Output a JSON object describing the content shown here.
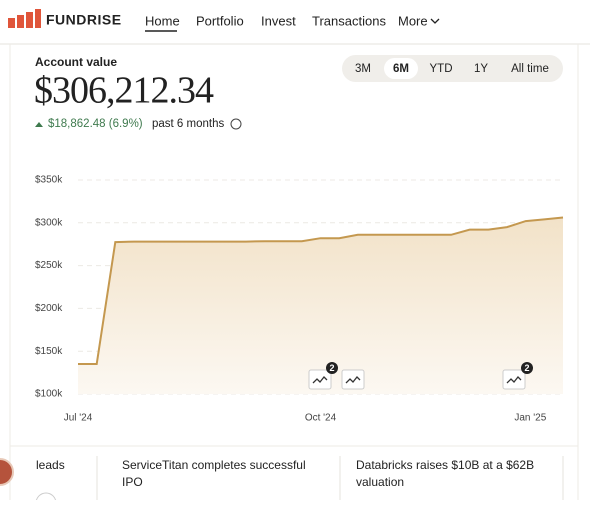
{
  "nav": {
    "logo": "FUNDRISE",
    "items": [
      "Home",
      "Portfolio",
      "Invest",
      "Transactions",
      "More"
    ]
  },
  "account": {
    "label": "Account value",
    "value": "$306,212.34",
    "change": "$18,862.48 (6.9%)",
    "period": "past 6 months"
  },
  "ranges": [
    "3M",
    "6M",
    "YTD",
    "1Y",
    "All time"
  ],
  "chart_data": {
    "type": "area",
    "color": "#c4984f",
    "grid": true,
    "categories": [
      "Jul '24",
      null,
      null,
      null,
      null,
      null,
      null,
      null,
      null,
      null,
      null,
      null,
      null,
      "Oct '24",
      null,
      null,
      null,
      null,
      null,
      null,
      null,
      null,
      null,
      null,
      null,
      "Jan '25",
      null
    ],
    "values": [
      135000,
      135000,
      277500,
      278000,
      278000,
      278000,
      278000,
      278000,
      278000,
      278000,
      278500,
      278500,
      278500,
      282000,
      282000,
      286000,
      286000,
      286000,
      286000,
      286000,
      286000,
      292000,
      292000,
      295000,
      302000,
      304000,
      306212.34
    ],
    "ylim": [
      100000,
      350000
    ],
    "yticks": [
      {
        "value": 100000,
        "label": "$100k"
      },
      {
        "value": 150000,
        "label": "$150k"
      },
      {
        "value": 200000,
        "label": "$200k"
      },
      {
        "value": 250000,
        "label": "$250k"
      },
      {
        "value": 300000,
        "label": "$300k"
      },
      {
        "value": 350000,
        "label": "$350k"
      }
    ]
  },
  "event_badges": [
    2,
    2
  ],
  "news": [
    "leads",
    "ServiceTitan completes successful",
    "IPO",
    "Databricks raises $10B at a $62B",
    "valuation"
  ]
}
